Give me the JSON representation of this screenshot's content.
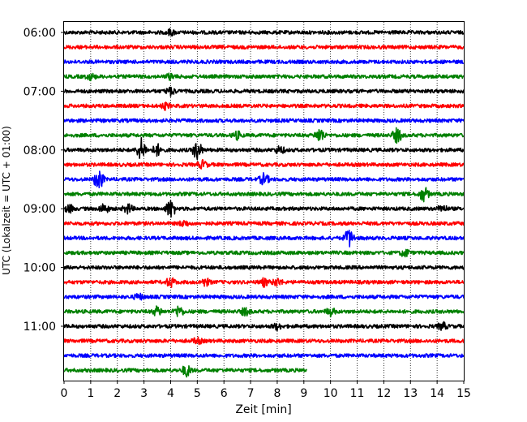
{
  "chart_data": {
    "type": "line",
    "title": "",
    "xlabel": "Zeit  [min]",
    "ylabel": "UTC (Lokalzeit = UTC + 01:00)",
    "xlim": [
      0,
      15
    ],
    "xticks": [
      0,
      1,
      2,
      3,
      4,
      5,
      6,
      7,
      8,
      9,
      10,
      11,
      12,
      13,
      14,
      15
    ],
    "xtick_labels": [
      "0",
      "1",
      "2",
      "3",
      "4",
      "5",
      "6",
      "7",
      "8",
      "9",
      "10",
      "11",
      "12",
      "13",
      "14",
      "15"
    ],
    "yticks": [
      "06:00",
      "07:00",
      "08:00",
      "09:00",
      "10:00",
      "11:00"
    ],
    "grid": "vertical dotted at every minute",
    "trace_minutes": 15,
    "colors_cycle": [
      "#000000",
      "#ff0000",
      "#0000ff",
      "#008000"
    ],
    "traces": [
      {
        "start": "06:00",
        "color": "#000000",
        "end_min": 15,
        "events": [
          [
            4.0,
            1.5
          ]
        ]
      },
      {
        "start": "06:15",
        "color": "#ff0000",
        "end_min": 15,
        "events": []
      },
      {
        "start": "06:30",
        "color": "#0000ff",
        "end_min": 15,
        "events": []
      },
      {
        "start": "06:45",
        "color": "#008000",
        "end_min": 15,
        "events": [
          [
            1.0,
            1.5
          ],
          [
            4.0,
            1.5
          ]
        ]
      },
      {
        "start": "07:00",
        "color": "#000000",
        "end_min": 15,
        "events": [
          [
            4.0,
            2.0
          ]
        ]
      },
      {
        "start": "07:15",
        "color": "#ff0000",
        "end_min": 15,
        "events": [
          [
            3.8,
            1.5
          ]
        ]
      },
      {
        "start": "07:30",
        "color": "#0000ff",
        "end_min": 15,
        "events": []
      },
      {
        "start": "07:45",
        "color": "#008000",
        "end_min": 15,
        "events": [
          [
            6.5,
            2
          ],
          [
            9.6,
            4
          ],
          [
            12.5,
            4
          ]
        ]
      },
      {
        "start": "08:00",
        "color": "#000000",
        "end_min": 15,
        "events": [
          [
            2.9,
            6
          ],
          [
            3.5,
            3
          ],
          [
            5.0,
            5
          ],
          [
            8.1,
            2
          ]
        ]
      },
      {
        "start": "08:15",
        "color": "#ff0000",
        "end_min": 15,
        "events": [
          [
            5.2,
            2
          ]
        ]
      },
      {
        "start": "08:30",
        "color": "#0000ff",
        "end_min": 15,
        "events": [
          [
            1.3,
            6
          ],
          [
            7.5,
            3
          ]
        ]
      },
      {
        "start": "08:45",
        "color": "#008000",
        "end_min": 15,
        "events": [
          [
            13.5,
            4
          ]
        ]
      },
      {
        "start": "09:00",
        "color": "#000000",
        "end_min": 15,
        "events": [
          [
            0.2,
            2
          ],
          [
            1.5,
            2.5
          ],
          [
            2.4,
            2.5
          ],
          [
            4.0,
            5
          ],
          [
            14.2,
            2
          ]
        ]
      },
      {
        "start": "09:15",
        "color": "#ff0000",
        "end_min": 15,
        "events": [
          [
            4.5,
            1.5
          ]
        ]
      },
      {
        "start": "09:30",
        "color": "#0000ff",
        "end_min": 15,
        "events": [
          [
            10.7,
            5
          ]
        ]
      },
      {
        "start": "09:45",
        "color": "#008000",
        "end_min": 15,
        "events": [
          [
            12.8,
            2
          ]
        ]
      },
      {
        "start": "10:00",
        "color": "#000000",
        "end_min": 15,
        "events": []
      },
      {
        "start": "10:15",
        "color": "#ff0000",
        "end_min": 15,
        "events": [
          [
            4.0,
            2.5
          ],
          [
            5.3,
            2
          ],
          [
            7.5,
            2
          ],
          [
            8.0,
            2
          ]
        ]
      },
      {
        "start": "10:30",
        "color": "#0000ff",
        "end_min": 15,
        "events": [
          [
            2.8,
            1.5
          ]
        ]
      },
      {
        "start": "10:45",
        "color": "#008000",
        "end_min": 15,
        "events": [
          [
            3.5,
            2.5
          ],
          [
            4.3,
            3
          ],
          [
            6.8,
            2
          ],
          [
            10.0,
            2
          ]
        ]
      },
      {
        "start": "11:00",
        "color": "#000000",
        "end_min": 15,
        "events": [
          [
            8.0,
            1.5
          ],
          [
            14.2,
            2
          ]
        ]
      },
      {
        "start": "11:15",
        "color": "#ff0000",
        "end_min": 15,
        "events": [
          [
            5.0,
            1.5
          ]
        ]
      },
      {
        "start": "11:30",
        "color": "#0000ff",
        "end_min": 15,
        "events": []
      },
      {
        "start": "11:45",
        "color": "#008000",
        "end_min": 9.1,
        "events": [
          [
            4.6,
            3
          ]
        ]
      }
    ]
  }
}
